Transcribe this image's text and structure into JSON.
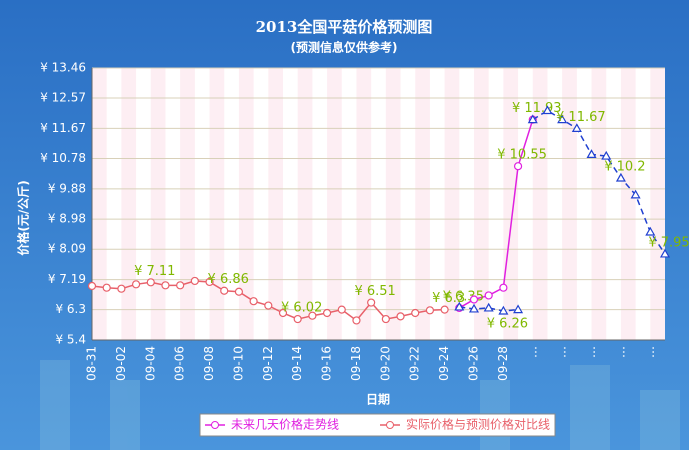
{
  "chart_data": {
    "type": "line",
    "title": "2013全国平菇价格预测图",
    "subtitle": "(预测信息仅供参考)",
    "x_label": "日期",
    "y_label": "价格(元/公斤)",
    "categories": [
      "08-31",
      null,
      "09-02",
      null,
      "09-04",
      null,
      "09-06",
      null,
      "09-08",
      null,
      "09-10",
      null,
      "09-12",
      null,
      "09-14",
      null,
      "09-16",
      null,
      "09-18",
      null,
      "09-20",
      null,
      "09-22",
      null,
      "09-24",
      null,
      "09-26",
      null,
      "09-28",
      null,
      "…",
      null,
      "…",
      null,
      "…",
      null,
      "…",
      null,
      "…",
      null
    ],
    "ylim": [
      5.4,
      13.46
    ],
    "yticks": [
      {
        "value": 5.4,
        "label": "¥ 5.4"
      },
      {
        "value": 6.3,
        "label": "¥ 6.3"
      },
      {
        "value": 7.19,
        "label": "¥ 7.19"
      },
      {
        "value": 8.09,
        "label": "¥ 8.09"
      },
      {
        "value": 8.98,
        "label": "¥ 8.98"
      },
      {
        "value": 9.88,
        "label": "¥ 9.88"
      },
      {
        "value": 10.78,
        "label": "¥ 10.78"
      },
      {
        "value": 11.67,
        "label": "¥ 11.67"
      },
      {
        "value": 12.57,
        "label": "¥ 12.57"
      },
      {
        "value": 13.46,
        "label": "¥ 13.46"
      }
    ],
    "grid": true,
    "legend": "bottom",
    "series": [
      {
        "name": "未来几天价格走势线",
        "color": "#e020e0",
        "marker": "circle",
        "dashed": false,
        "label_side": "above",
        "values": [
          null,
          null,
          null,
          null,
          null,
          null,
          null,
          null,
          null,
          null,
          null,
          null,
          null,
          null,
          null,
          null,
          null,
          null,
          null,
          null,
          null,
          null,
          null,
          null,
          null,
          6.35,
          6.6,
          6.72,
          6.95,
          10.55,
          11.93,
          null,
          null,
          null,
          null,
          null,
          null,
          null,
          null,
          null
        ],
        "value_labels": [
          null,
          null,
          null,
          null,
          null,
          null,
          null,
          null,
          null,
          null,
          null,
          null,
          null,
          null,
          null,
          null,
          null,
          null,
          null,
          null,
          null,
          null,
          null,
          null,
          null,
          "¥ 6.35",
          null,
          null,
          null,
          "¥ 10.55",
          null,
          null,
          null,
          null,
          null,
          null,
          null,
          null,
          null,
          null
        ]
      },
      {
        "name": "实际价格与预测价格对比线",
        "color": "#e8606a",
        "marker": "circle",
        "dashed": false,
        "label_side": "above",
        "values": [
          7.0,
          6.95,
          6.92,
          7.05,
          7.11,
          7.02,
          7.02,
          7.15,
          7.12,
          6.86,
          6.83,
          6.55,
          6.42,
          6.2,
          6.02,
          6.12,
          6.2,
          6.3,
          5.98,
          6.51,
          6.02,
          6.1,
          6.2,
          6.28,
          6.3,
          null,
          null,
          null,
          null,
          null,
          null,
          null,
          null,
          null,
          null,
          null,
          null,
          null,
          null,
          null
        ],
        "value_labels": [
          null,
          null,
          null,
          null,
          "¥ 7.11",
          null,
          null,
          null,
          null,
          "¥ 6.86",
          null,
          null,
          null,
          null,
          "¥ 6.02",
          null,
          null,
          null,
          null,
          "¥ 6.51",
          null,
          null,
          null,
          null,
          "¥ 6.3",
          null,
          null,
          null,
          null,
          null,
          null,
          null,
          null,
          null,
          null,
          null,
          null,
          null,
          null,
          null
        ]
      },
      {
        "color": "#2040d0",
        "marker": "triangle",
        "dashed": true,
        "label_side": "below",
        "values": [
          null,
          null,
          null,
          null,
          null,
          null,
          null,
          null,
          null,
          null,
          null,
          null,
          null,
          null,
          null,
          null,
          null,
          null,
          null,
          null,
          null,
          null,
          null,
          null,
          null,
          6.38,
          6.32,
          6.35,
          6.26,
          6.3,
          null,
          null,
          null,
          null,
          null,
          null,
          null,
          null,
          null,
          null
        ],
        "value_labels": [
          null,
          null,
          null,
          null,
          null,
          null,
          null,
          null,
          null,
          null,
          null,
          null,
          null,
          null,
          null,
          null,
          null,
          null,
          null,
          null,
          null,
          null,
          null,
          null,
          null,
          null,
          null,
          null,
          "¥ 6.26",
          null,
          null,
          null,
          null,
          null,
          null,
          null,
          null,
          null,
          null,
          null
        ]
      },
      {
        "color": "#2040d0",
        "marker": "triangle",
        "dashed": true,
        "label_side": "above",
        "values": [
          null,
          null,
          null,
          null,
          null,
          null,
          null,
          null,
          null,
          null,
          null,
          null,
          null,
          null,
          null,
          null,
          null,
          null,
          null,
          null,
          null,
          null,
          null,
          null,
          null,
          null,
          null,
          null,
          null,
          null,
          11.93,
          12.2,
          11.93,
          11.67,
          10.9,
          10.85,
          10.2,
          9.7,
          8.6,
          7.95
        ],
        "value_labels": [
          null,
          null,
          null,
          null,
          null,
          null,
          null,
          null,
          null,
          null,
          null,
          null,
          null,
          null,
          null,
          null,
          null,
          null,
          null,
          null,
          null,
          null,
          null,
          null,
          null,
          null,
          null,
          null,
          null,
          null,
          "¥ 11.93",
          null,
          null,
          "¥ 11.67",
          null,
          null,
          "¥ 10.2",
          null,
          null,
          "¥ 7.95"
        ]
      }
    ]
  }
}
